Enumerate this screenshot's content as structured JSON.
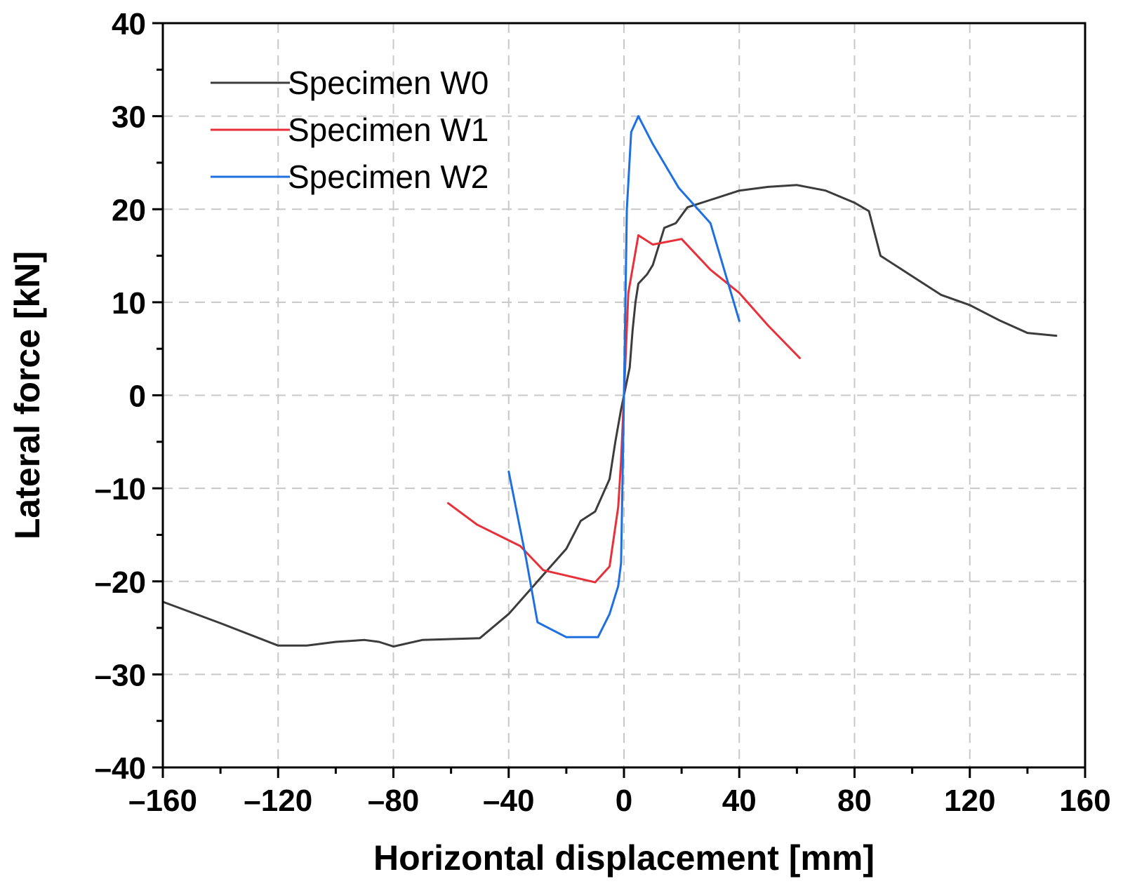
{
  "chart_data": {
    "type": "line",
    "title": "",
    "xlabel": "Horizontal displacement [mm]",
    "ylabel": "Lateral force [kN]",
    "xlim": [
      -160,
      160
    ],
    "ylim": [
      -40,
      40
    ],
    "xticks": [
      -160,
      -120,
      -80,
      -40,
      0,
      40,
      80,
      120,
      160
    ],
    "yticks": [
      -40,
      -30,
      -20,
      -10,
      0,
      10,
      20,
      30,
      40
    ],
    "xtick_labels": [
      "–160",
      "–120",
      "–80",
      "–40",
      "0",
      "40",
      "80",
      "120",
      "160"
    ],
    "ytick_labels": [
      "–40",
      "–30",
      "–20",
      "–10",
      "0",
      "10",
      "20",
      "30",
      "40"
    ],
    "grid": true,
    "legend_position": "top-left",
    "series": [
      {
        "name": "Specimen W0",
        "color": "#3c3c3c",
        "x": [
          -160,
          -140,
          -120,
          -110,
          -100,
          -90,
          -85,
          -80,
          -70,
          -60,
          -50,
          -40,
          -30,
          -20,
          -15,
          -10,
          -5,
          -3,
          -1,
          0,
          2,
          3,
          4,
          5,
          8,
          10,
          14,
          18,
          22,
          30,
          40,
          50,
          60,
          70,
          80,
          85,
          89,
          100,
          110,
          120,
          130,
          140,
          150
        ],
        "y": [
          -22.2,
          -24.5,
          -26.9,
          -26.9,
          -26.5,
          -26.3,
          -26.5,
          -27,
          -26.3,
          -26.2,
          -26.1,
          -23.5,
          -20,
          -16.5,
          -13.5,
          -12.5,
          -9,
          -5,
          -1.5,
          0,
          3,
          7,
          10,
          12,
          13,
          14,
          18,
          18.5,
          20.2,
          21,
          22,
          22.4,
          22.6,
          22,
          20.7,
          19.8,
          15,
          12.8,
          10.8,
          9.7,
          8.1,
          6.7,
          6.4
        ]
      },
      {
        "name": "Specimen W1",
        "color": "#e8303a",
        "x": [
          -61,
          -51,
          -36,
          -28,
          -10,
          -5,
          -2,
          -1,
          0,
          1.5,
          5,
          10,
          20,
          30,
          40,
          50,
          61
        ],
        "y": [
          -11.6,
          -13.9,
          -16.2,
          -18.8,
          -20.1,
          -18.4,
          -12,
          -7,
          0,
          11,
          17.2,
          16.2,
          16.8,
          13.5,
          11,
          7.5,
          4
        ]
      },
      {
        "name": "Specimen W2",
        "color": "#1e6fe0",
        "x": [
          -40,
          -34,
          -30,
          -20,
          -9,
          -5,
          -2,
          -1,
          0,
          1,
          2.5,
          5,
          10,
          19,
          30,
          40
        ],
        "y": [
          -8.2,
          -17.5,
          -24.4,
          -26,
          -26,
          -23.5,
          -20.5,
          -18,
          0,
          20,
          28.3,
          30,
          27,
          22.3,
          18.5,
          8
        ]
      }
    ]
  }
}
